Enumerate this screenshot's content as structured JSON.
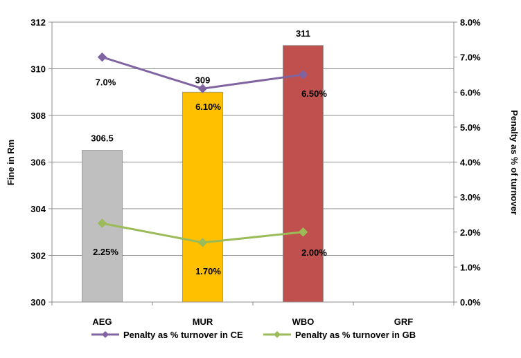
{
  "chart_data": {
    "type": "bar",
    "categories": [
      "AEG",
      "MUR",
      "WBO",
      "GRF"
    ],
    "bars": {
      "values": [
        306.5,
        309,
        311,
        null
      ],
      "labels": [
        "306.5",
        "309",
        "311",
        ""
      ],
      "colors": [
        "#bfbfbf",
        "#ffc000",
        "#c0504d",
        "#ffffff"
      ]
    },
    "lines": [
      {
        "name": "Penalty as % turnover in CE",
        "values": [
          7.0,
          6.1,
          6.5,
          null
        ],
        "labels": [
          "7.0%",
          "6.10%",
          "6.50%",
          ""
        ],
        "color": "#8064a2",
        "axis": "right"
      },
      {
        "name": "Penalty as % turnover in GB",
        "values": [
          2.25,
          1.7,
          2.0,
          null
        ],
        "labels": [
          "2.25%",
          "1.70%",
          "2.00%",
          ""
        ],
        "color": "#9bbb59",
        "axis": "right"
      }
    ],
    "ylabel": "Fine in Rm",
    "ylim": [
      300,
      312
    ],
    "yticks": [
      "300",
      "302",
      "304",
      "306",
      "308",
      "310",
      "312"
    ],
    "ylabel_right": "Penalty as % of turnover",
    "ylim_right": [
      0,
      8
    ],
    "yticks_right": [
      "0.0%",
      "1.0%",
      "2.0%",
      "3.0%",
      "4.0%",
      "5.0%",
      "6.0%",
      "7.0%",
      "8.0%"
    ],
    "grid": true,
    "legend_position": "bottom"
  }
}
